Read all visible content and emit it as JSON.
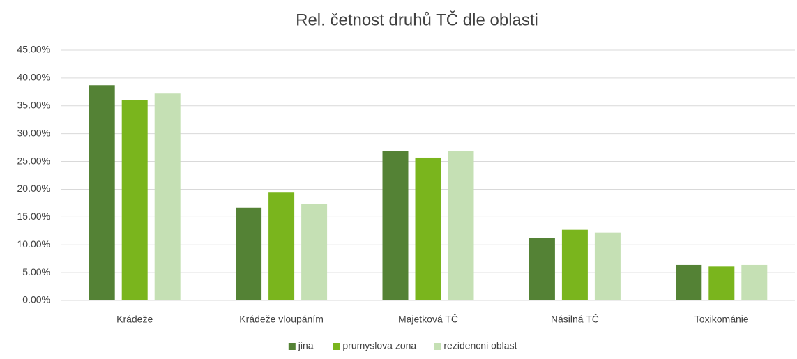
{
  "chart_data": {
    "type": "bar",
    "title": "Rel. četnost druhů TČ dle oblasti",
    "categories": [
      "Krádeže",
      "Krádeže vloupáním",
      "Majetková TČ",
      "Násilná TČ",
      "Toxikománie"
    ],
    "series": [
      {
        "name": "jina",
        "color": "#548235",
        "values": [
          38.7,
          16.7,
          26.9,
          11.2,
          6.4
        ]
      },
      {
        "name": "prumyslova zona",
        "color": "#7ab51d",
        "values": [
          36.1,
          19.4,
          25.7,
          12.7,
          6.1
        ]
      },
      {
        "name": "rezidencni oblast",
        "color": "#c5e0b4",
        "values": [
          37.2,
          17.3,
          26.9,
          12.2,
          6.4
        ]
      }
    ],
    "ylim": [
      0,
      45
    ],
    "yticks": [
      {
        "value": 0,
        "label": "0.00%"
      },
      {
        "value": 5,
        "label": "5.00%"
      },
      {
        "value": 10,
        "label": "10.00%"
      },
      {
        "value": 15,
        "label": "15.00%"
      },
      {
        "value": 20,
        "label": "20.00%"
      },
      {
        "value": 25,
        "label": "25.00%"
      },
      {
        "value": 30,
        "label": "30.00%"
      },
      {
        "value": 35,
        "label": "35.00%"
      },
      {
        "value": 40,
        "label": "40.00%"
      },
      {
        "value": 45,
        "label": "45.00%"
      }
    ],
    "grid": true,
    "legend": "bottom"
  }
}
